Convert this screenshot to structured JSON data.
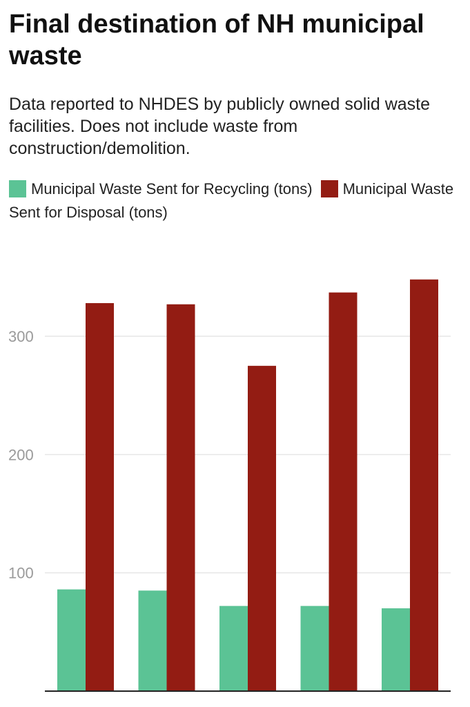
{
  "chart_data": {
    "type": "bar",
    "title": "Final destination of NH municipal waste",
    "subtitle": "Data reported to NHDES by publicly owned solid waste facilities. Does not include waste from construction/demolition.",
    "categories": [
      "",
      "",
      "",
      "",
      ""
    ],
    "series": [
      {
        "name": "Municipal Waste Sent for Recycling (tons)",
        "color": "#5bc395",
        "values": [
          86,
          85,
          72,
          72,
          70
        ]
      },
      {
        "name": "Municipal Waste Sent for Disposal (tons)",
        "color": "#931c13",
        "values": [
          328,
          327,
          275,
          337,
          348
        ]
      }
    ],
    "yticks": [
      100,
      200,
      300
    ],
    "ylim": [
      0,
      348
    ],
    "grid": true,
    "legend_position": "top"
  }
}
